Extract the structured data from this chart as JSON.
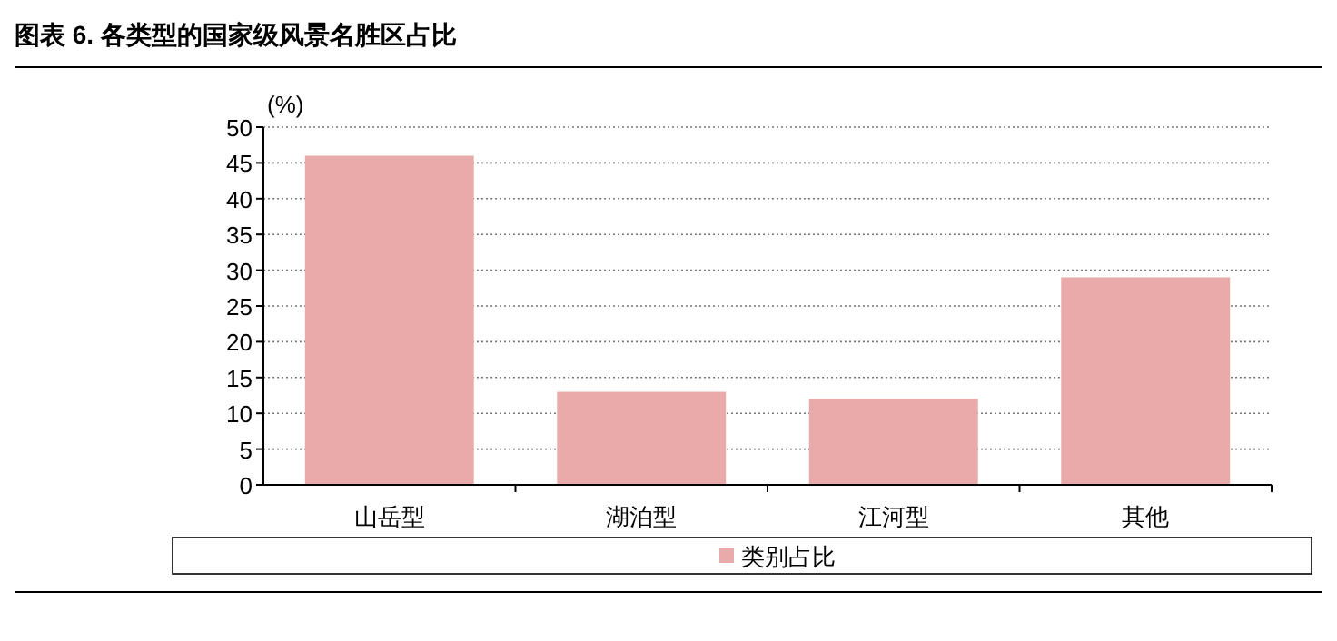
{
  "chart_data": {
    "type": "bar",
    "title": "图表 6. 各类型的国家级风景名胜区占比",
    "ylabel": "(%)",
    "categories": [
      "山岳型",
      "湖泊型",
      "江河型",
      "其他"
    ],
    "series": [
      {
        "name": "类别占比",
        "color": "#e9abaa",
        "values": [
          46,
          13,
          12,
          29
        ]
      }
    ],
    "ylim": [
      0,
      50
    ],
    "yticks": [
      0,
      5,
      10,
      15,
      20,
      25,
      30,
      35,
      40,
      45,
      50
    ],
    "grid": "y",
    "legend": "bottom"
  }
}
